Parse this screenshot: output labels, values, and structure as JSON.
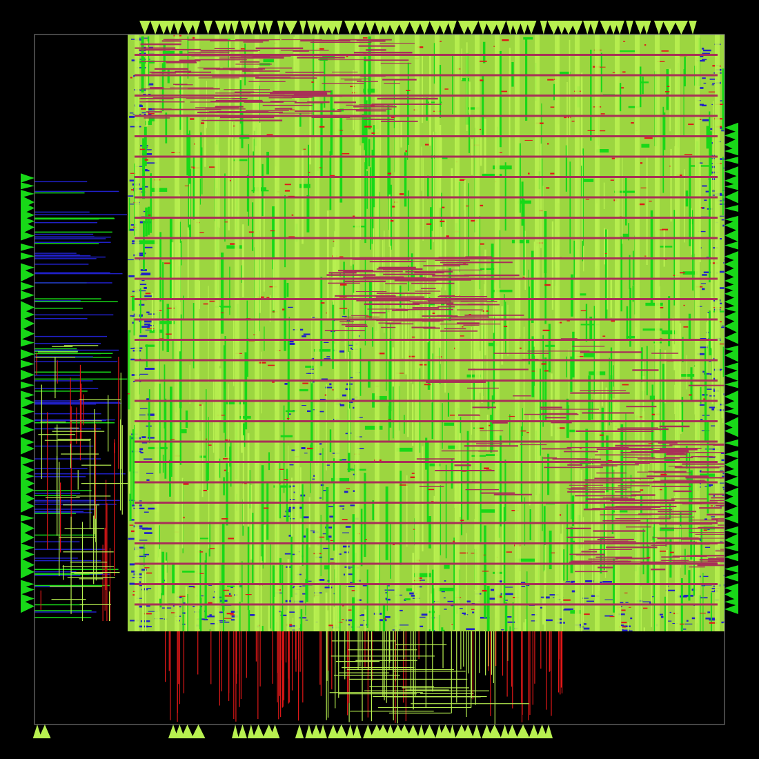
{
  "view": {
    "background": "#000000",
    "die_outline_color": "#8a8a8a"
  },
  "layers": [
    {
      "name": "metal1",
      "color": "#2020c8"
    },
    {
      "name": "metal2",
      "color": "#e01818"
    },
    {
      "name": "metal3",
      "color": "#18d818"
    },
    {
      "name": "metal4",
      "color": "#b8f050"
    },
    {
      "name": "metal5",
      "color": "#a83058"
    }
  ],
  "pins": {
    "shape": "triangle",
    "colors": [
      "#b8f050",
      "#18d818"
    ],
    "edges": [
      "top",
      "bottom",
      "left",
      "right"
    ]
  }
}
